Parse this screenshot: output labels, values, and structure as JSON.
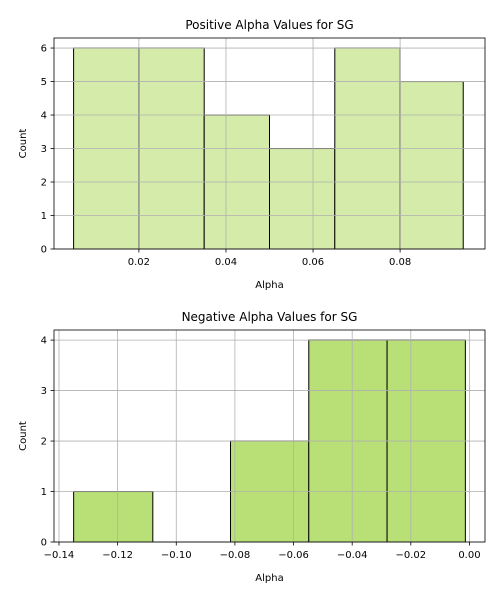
{
  "chart_data": [
    {
      "type": "bar",
      "title": "Positive Alpha Values for SG",
      "xlabel": "Alpha",
      "ylabel": "Count",
      "color": "#d4ebaa",
      "edge_color": "#000000",
      "grid": true,
      "bins": [
        {
          "start": 0.005,
          "end": 0.02,
          "count": 6
        },
        {
          "start": 0.02,
          "end": 0.035,
          "count": 6
        },
        {
          "start": 0.035,
          "end": 0.05,
          "count": 4
        },
        {
          "start": 0.05,
          "end": 0.065,
          "count": 3
        },
        {
          "start": 0.065,
          "end": 0.08,
          "count": 6
        },
        {
          "start": 0.08,
          "end": 0.0945,
          "count": 5
        }
      ],
      "xlim": [
        0.0005,
        0.0995
      ],
      "ylim": [
        0,
        6.3
      ],
      "xticks": [
        0.02,
        0.04,
        0.06,
        0.08
      ],
      "xtick_labels": [
        "0.02",
        "0.04",
        "0.06",
        "0.08"
      ],
      "yticks": [
        0,
        1,
        2,
        3,
        4,
        5,
        6
      ],
      "ytick_labels": [
        "0",
        "1",
        "2",
        "3",
        "4",
        "5",
        "6"
      ]
    },
    {
      "type": "bar",
      "title": "Negative Alpha Values for SG",
      "xlabel": "Alpha",
      "ylabel": "Count",
      "color": "#b9e076",
      "edge_color": "#000000",
      "grid": true,
      "bins": [
        {
          "start": -0.135,
          "end": -0.108,
          "count": 1
        },
        {
          "start": -0.108,
          "end": -0.0815,
          "count": 0
        },
        {
          "start": -0.0815,
          "end": -0.0548,
          "count": 2
        },
        {
          "start": -0.0548,
          "end": -0.0281,
          "count": 4
        },
        {
          "start": -0.0281,
          "end": -0.0014,
          "count": 4
        }
      ],
      "xlim": [
        -0.1417,
        0.0053
      ],
      "ylim": [
        0,
        4.2
      ],
      "xticks": [
        -0.14,
        -0.12,
        -0.1,
        -0.08,
        -0.06,
        -0.04,
        -0.02,
        0.0
      ],
      "xtick_labels": [
        "−0.14",
        "−0.12",
        "−0.10",
        "−0.08",
        "−0.06",
        "−0.04",
        "−0.02",
        "0.00"
      ],
      "yticks": [
        0,
        1,
        2,
        3,
        4
      ],
      "ytick_labels": [
        "0",
        "1",
        "2",
        "3",
        "4"
      ]
    }
  ]
}
